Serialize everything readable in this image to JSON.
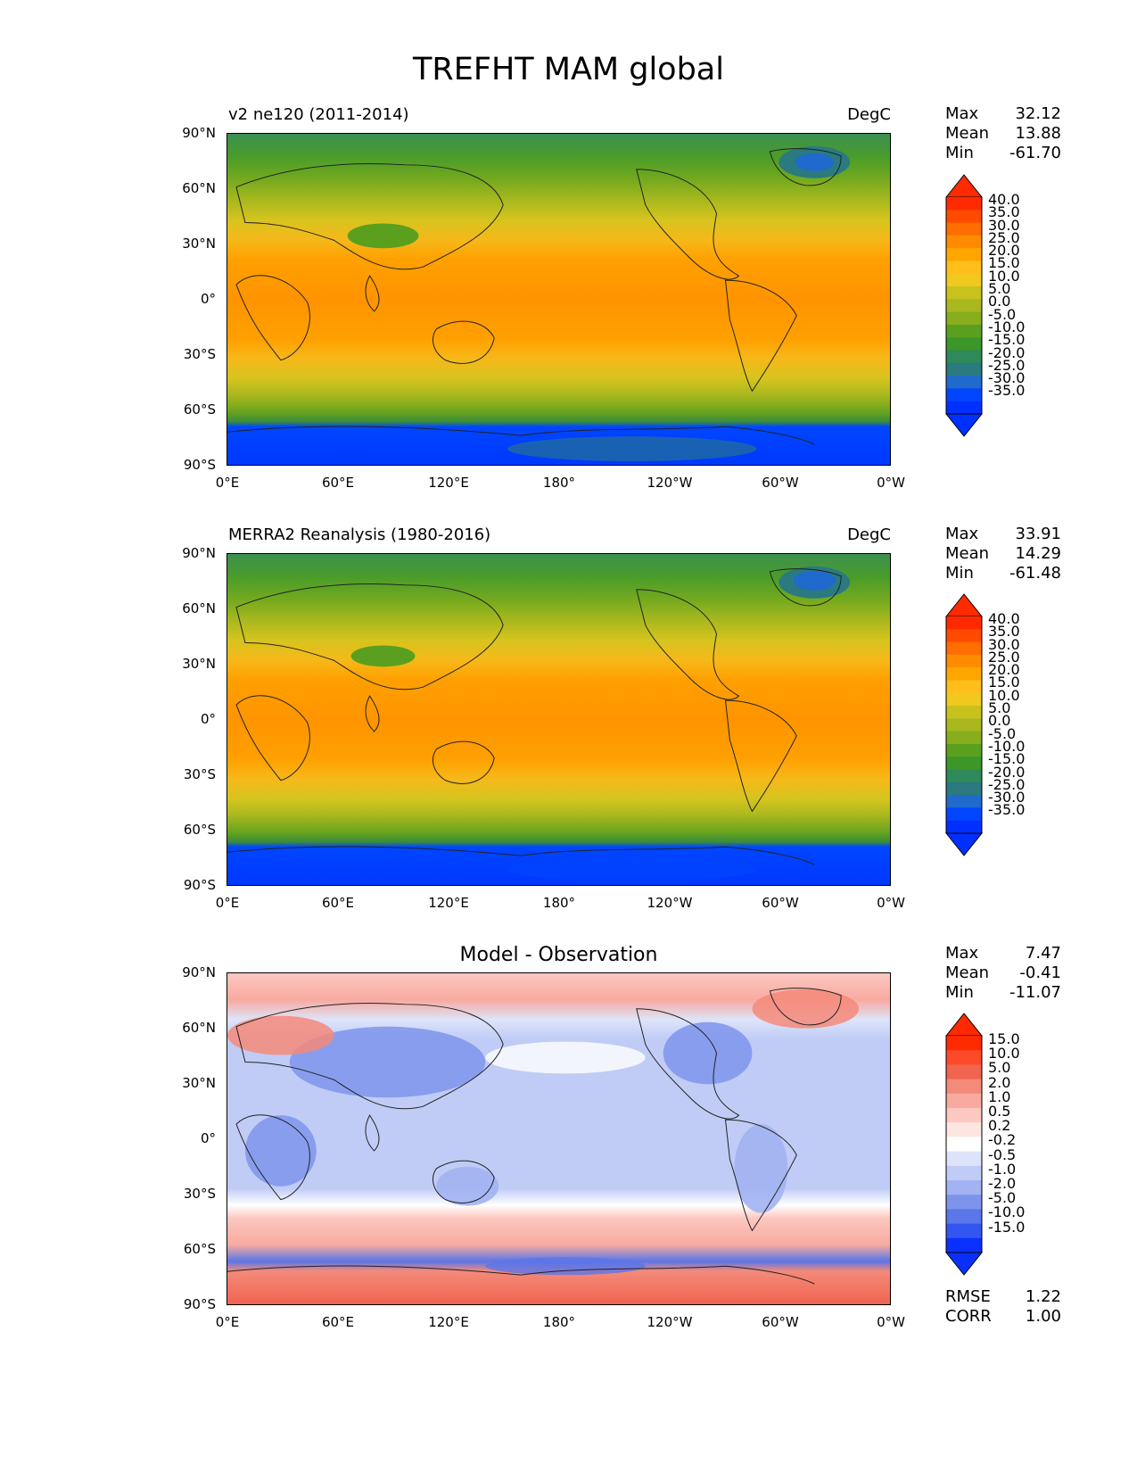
{
  "figure": {
    "title": "TREFHT MAM global"
  },
  "axes": {
    "y_ticks": [
      "90°N",
      "60°N",
      "30°N",
      "0°",
      "30°S",
      "60°S",
      "90°S"
    ],
    "x_ticks": [
      "0°E",
      "60°E",
      "120°E",
      "180°",
      "120°W",
      "60°W",
      "0°W"
    ]
  },
  "panels": [
    {
      "id": "model",
      "title_left": "v2 ne120 (2011-2014)",
      "title_right": "DegC",
      "title_center": "",
      "stats": [
        {
          "label": "Max",
          "value": "32.12"
        },
        {
          "label": "Mean",
          "value": "13.88"
        },
        {
          "label": "Min",
          "value": "-61.70"
        }
      ],
      "colorbar_labels": [
        "40.0",
        "35.0",
        "30.0",
        "25.0",
        "20.0",
        "15.0",
        "10.0",
        "5.0",
        "0.0",
        "-5.0",
        "-10.0",
        "-15.0",
        "-20.0",
        "-25.0",
        "-30.0",
        "-35.0"
      ],
      "colorbar_colors": [
        "#ff2a00",
        "#ff4a00",
        "#ff6e00",
        "#ff8c00",
        "#ffa600",
        "#ffbe1a",
        "#f0c81e",
        "#c8c21e",
        "#a8b81e",
        "#88ae1e",
        "#5aa01e",
        "#3c9628",
        "#2e8a5a",
        "#2a7a80",
        "#1f6acc",
        "#0046ff",
        "#0030ff"
      ],
      "colorbar_extend_top": "#ff2a00",
      "colorbar_extend_bottom": "#0030ff",
      "extra_stats": []
    },
    {
      "id": "obs",
      "title_left": "MERRA2 Reanalysis (1980-2016)",
      "title_right": "DegC",
      "title_center": "",
      "stats": [
        {
          "label": "Max",
          "value": "33.91"
        },
        {
          "label": "Mean",
          "value": "14.29"
        },
        {
          "label": "Min",
          "value": "-61.48"
        }
      ],
      "colorbar_labels": [
        "40.0",
        "35.0",
        "30.0",
        "25.0",
        "20.0",
        "15.0",
        "10.0",
        "5.0",
        "0.0",
        "-5.0",
        "-10.0",
        "-15.0",
        "-20.0",
        "-25.0",
        "-30.0",
        "-35.0"
      ],
      "colorbar_colors": [
        "#ff2a00",
        "#ff4a00",
        "#ff6e00",
        "#ff8c00",
        "#ffa600",
        "#ffbe1a",
        "#f0c81e",
        "#c8c21e",
        "#a8b81e",
        "#88ae1e",
        "#5aa01e",
        "#3c9628",
        "#2e8a5a",
        "#2a7a80",
        "#1f6acc",
        "#0046ff",
        "#0030ff"
      ],
      "colorbar_extend_top": "#ff2a00",
      "colorbar_extend_bottom": "#0030ff",
      "extra_stats": []
    },
    {
      "id": "diff",
      "title_left": "",
      "title_right": "",
      "title_center": "Model - Observation",
      "stats": [
        {
          "label": "Max",
          "value": "7.47"
        },
        {
          "label": "Mean",
          "value": "-0.41"
        },
        {
          "label": "Min",
          "value": "-11.07"
        }
      ],
      "colorbar_labels": [
        "15.0",
        "10.0",
        "5.0",
        "2.0",
        "1.0",
        "0.5",
        "0.2",
        "-0.2",
        "-0.5",
        "-1.0",
        "-2.0",
        "-5.0",
        "-10.0",
        "-15.0"
      ],
      "colorbar_colors": [
        "#ff2a00",
        "#ff4a2a",
        "#f06450",
        "#f48a7a",
        "#f8aaa0",
        "#fcc8c0",
        "#fde6e2",
        "#ffffff",
        "#dde4fa",
        "#c0ccf6",
        "#a2b2f2",
        "#7e94ec",
        "#5a76e8",
        "#3456f0",
        "#0a30ff"
      ],
      "colorbar_extend_top": "#ff2a00",
      "colorbar_extend_bottom": "#0a30ff",
      "extra_stats": [
        {
          "label": "RMSE",
          "value": "1.22"
        },
        {
          "label": "CORR",
          "value": "1.00"
        }
      ]
    }
  ]
}
